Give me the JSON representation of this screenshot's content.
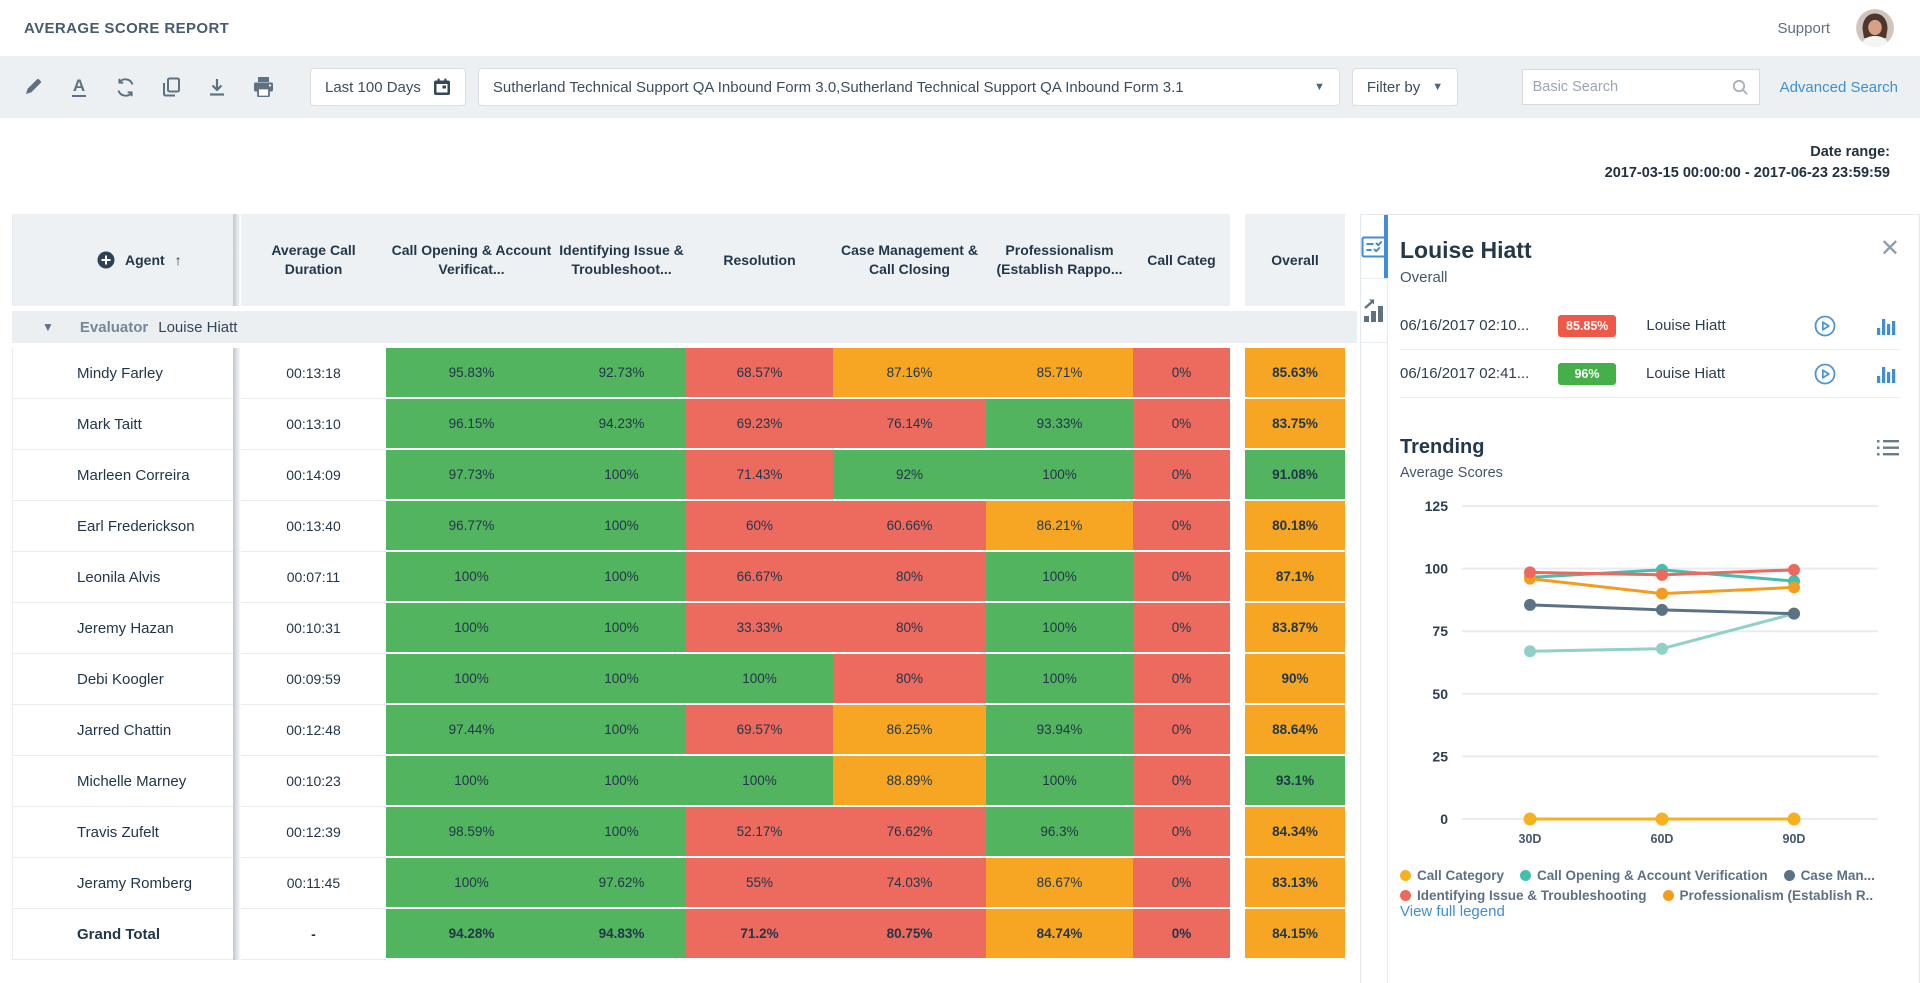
{
  "app": {
    "title": "AVERAGE SCORE REPORT",
    "support": "Support"
  },
  "toolbar": {
    "icons": [
      "edit-icon",
      "font-color-icon",
      "refresh-icon",
      "copy-icon",
      "download-icon",
      "print-icon"
    ],
    "date_button": "Last 100 Days",
    "form_selector": "Sutherland Technical Support QA Inbound Form 3.0,Sutherland Technical Support QA Inbound Form 3.1",
    "filter_button": "Filter by",
    "search_placeholder": "Basic Search",
    "advanced_search": "Advanced Search"
  },
  "date_range": {
    "label": "Date range:",
    "value": "2017-03-15 00:00:00 - 2017-06-23 23:59:59"
  },
  "table": {
    "agent_header": "Agent",
    "sort_indicator": "↑",
    "columns": [
      "Average Call Duration",
      "Call Opening & Account Verificat...",
      "Identifying Issue & Troubleshoot...",
      "Resolution",
      "Case Management & Call Closing",
      "Professionalism (Establish Rappo...",
      "Call Categ",
      "Overall"
    ],
    "group_label": "Evaluator",
    "group_value": "Louise Hiatt",
    "color_map": {
      "g": "#52b45f",
      "r": "#ed6a5e",
      "o": "#f6a623"
    },
    "rows": [
      {
        "agent": "Mindy Farley",
        "duration": "00:13:18",
        "scores": [
          "95.83%",
          "92.73%",
          "68.57%",
          "87.16%",
          "85.71%",
          "0%"
        ],
        "colors": [
          "g",
          "g",
          "r",
          "o",
          "o",
          "r"
        ],
        "overall": "85.63%",
        "overall_color": "o",
        "is_total": false
      },
      {
        "agent": "Mark Taitt",
        "duration": "00:13:10",
        "scores": [
          "96.15%",
          "94.23%",
          "69.23%",
          "76.14%",
          "93.33%",
          "0%"
        ],
        "colors": [
          "g",
          "g",
          "r",
          "r",
          "g",
          "r"
        ],
        "overall": "83.75%",
        "overall_color": "o",
        "is_total": false
      },
      {
        "agent": "Marleen Correira",
        "duration": "00:14:09",
        "scores": [
          "97.73%",
          "100%",
          "71.43%",
          "92%",
          "100%",
          "0%"
        ],
        "colors": [
          "g",
          "g",
          "r",
          "g",
          "g",
          "r"
        ],
        "overall": "91.08%",
        "overall_color": "g",
        "is_total": false
      },
      {
        "agent": "Earl Frederickson",
        "duration": "00:13:40",
        "scores": [
          "96.77%",
          "100%",
          "60%",
          "60.66%",
          "86.21%",
          "0%"
        ],
        "colors": [
          "g",
          "g",
          "r",
          "r",
          "o",
          "r"
        ],
        "overall": "80.18%",
        "overall_color": "o",
        "is_total": false
      },
      {
        "agent": "Leonila Alvis",
        "duration": "00:07:11",
        "scores": [
          "100%",
          "100%",
          "66.67%",
          "80%",
          "100%",
          "0%"
        ],
        "colors": [
          "g",
          "g",
          "r",
          "r",
          "g",
          "r"
        ],
        "overall": "87.1%",
        "overall_color": "o",
        "is_total": false
      },
      {
        "agent": "Jeremy Hazan",
        "duration": "00:10:31",
        "scores": [
          "100%",
          "100%",
          "33.33%",
          "80%",
          "100%",
          "0%"
        ],
        "colors": [
          "g",
          "g",
          "r",
          "r",
          "g",
          "r"
        ],
        "overall": "83.87%",
        "overall_color": "o",
        "is_total": false
      },
      {
        "agent": "Debi Koogler",
        "duration": "00:09:59",
        "scores": [
          "100%",
          "100%",
          "100%",
          "80%",
          "100%",
          "0%"
        ],
        "colors": [
          "g",
          "g",
          "g",
          "r",
          "g",
          "r"
        ],
        "overall": "90%",
        "overall_color": "o",
        "is_total": false
      },
      {
        "agent": "Jarred Chattin",
        "duration": "00:12:48",
        "scores": [
          "97.44%",
          "100%",
          "69.57%",
          "86.25%",
          "93.94%",
          "0%"
        ],
        "colors": [
          "g",
          "g",
          "r",
          "o",
          "g",
          "r"
        ],
        "overall": "88.64%",
        "overall_color": "o",
        "is_total": false
      },
      {
        "agent": "Michelle Marney",
        "duration": "00:10:23",
        "scores": [
          "100%",
          "100%",
          "100%",
          "88.89%",
          "100%",
          "0%"
        ],
        "colors": [
          "g",
          "g",
          "g",
          "o",
          "g",
          "r"
        ],
        "overall": "93.1%",
        "overall_color": "g",
        "is_total": false
      },
      {
        "agent": "Travis Zufelt",
        "duration": "00:12:39",
        "scores": [
          "98.59%",
          "100%",
          "52.17%",
          "76.62%",
          "96.3%",
          "0%"
        ],
        "colors": [
          "g",
          "g",
          "r",
          "r",
          "g",
          "r"
        ],
        "overall": "84.34%",
        "overall_color": "o",
        "is_total": false
      },
      {
        "agent": "Jeramy Romberg",
        "duration": "00:11:45",
        "scores": [
          "100%",
          "97.62%",
          "55%",
          "74.03%",
          "86.67%",
          "0%"
        ],
        "colors": [
          "g",
          "g",
          "r",
          "r",
          "o",
          "r"
        ],
        "overall": "83.13%",
        "overall_color": "o",
        "is_total": false
      },
      {
        "agent": "Grand Total",
        "duration": "-",
        "scores": [
          "94.28%",
          "94.83%",
          "71.2%",
          "80.75%",
          "84.74%",
          "0%"
        ],
        "colors": [
          "g",
          "g",
          "r",
          "r",
          "o",
          "r"
        ],
        "overall": "84.15%",
        "overall_color": "o",
        "is_total": true
      }
    ]
  },
  "panel": {
    "title": "Louise Hiatt",
    "subtitle": "Overall",
    "entries": [
      {
        "date": "06/16/2017 02:10...",
        "score": "85.85%",
        "score_color": "#ee5849",
        "agent": "Louise Hiatt"
      },
      {
        "date": "06/16/2017 02:41...",
        "score": "96%",
        "score_color": "#45b049",
        "agent": "Louise Hiatt"
      }
    ],
    "view_full_legend": "View full legend"
  },
  "chart_data": {
    "type": "line",
    "title": "Trending",
    "subtitle": "Average Scores",
    "x": [
      "30D",
      "60D",
      "90D"
    ],
    "ylim": [
      0,
      125
    ],
    "yticks": [
      0,
      25,
      50,
      75,
      100,
      125
    ],
    "grid": true,
    "legend_position": "bottom",
    "series": [
      {
        "name": "Call Category",
        "color": "#f7b11e",
        "values": [
          0,
          0,
          0
        ]
      },
      {
        "name": "Call Opening & Account Verification",
        "color": "#42bfae",
        "values": [
          96.5,
          99.5,
          95
        ]
      },
      {
        "name": "Case Man...",
        "color": "#5b7286",
        "values": [
          85.5,
          83.5,
          82
        ]
      },
      {
        "name": "Identifying Issue & Troubleshooting",
        "color": "#ed685e",
        "values": [
          98.5,
          97.5,
          99.5
        ]
      },
      {
        "name": "Professionalism (Establish R..",
        "color": "#f49c20",
        "values": [
          96,
          90,
          92.5
        ]
      },
      {
        "name": "",
        "color": "#8fd1c7",
        "values": [
          67,
          68,
          82
        ]
      }
    ],
    "legend": [
      {
        "label": "Call Category",
        "color": "#f7b11e"
      },
      {
        "label": "Call Opening & Account Verification",
        "color": "#42bfae"
      },
      {
        "label": "Case Man...",
        "color": "#5b7286"
      },
      {
        "label": "Identifying Issue & Troubleshooting",
        "color": "#ed685e"
      },
      {
        "label": "Professionalism (Establish R..",
        "color": "#f49c20"
      }
    ]
  }
}
